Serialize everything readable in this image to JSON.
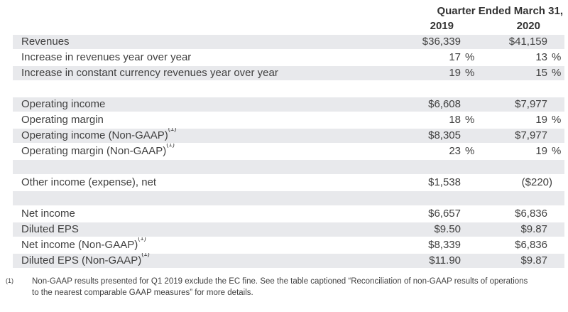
{
  "header": {
    "title": "Quarter Ended March 31,",
    "col_2019": "2019",
    "col_2020": "2020"
  },
  "table": {
    "rows": [
      {
        "label": "Revenues",
        "sup": "",
        "v1": "$36,339",
        "s1": "",
        "v2": "$41,159",
        "s2": "",
        "shaded": true,
        "blank": false
      },
      {
        "label": "Increase in revenues year over year",
        "sup": "",
        "v1": "17",
        "s1": "%",
        "v2": "13",
        "s2": "%",
        "shaded": false,
        "blank": false
      },
      {
        "label": "Increase in constant currency revenues year over year",
        "sup": "",
        "v1": "19",
        "s1": "%",
        "v2": "15",
        "s2": "%",
        "shaded": true,
        "blank": false
      },
      {
        "label": "",
        "sup": "",
        "v1": "",
        "s1": "",
        "v2": "",
        "s2": "",
        "shaded": false,
        "blank": true
      },
      {
        "label": "Operating income",
        "sup": "",
        "v1": "$6,608",
        "s1": "",
        "v2": "$7,977",
        "s2": "",
        "shaded": true,
        "blank": false
      },
      {
        "label": "Operating margin",
        "sup": "",
        "v1": "18",
        "s1": "%",
        "v2": "19",
        "s2": "%",
        "shaded": false,
        "blank": false
      },
      {
        "label": "Operating income (Non-GAAP)",
        "sup": "(1)",
        "v1": "$8,305",
        "s1": "",
        "v2": "$7,977",
        "s2": "",
        "shaded": true,
        "blank": false
      },
      {
        "label": "Operating margin (Non-GAAP)",
        "sup": "(1)",
        "v1": "23",
        "s1": "%",
        "v2": "19",
        "s2": "%",
        "shaded": false,
        "blank": false
      },
      {
        "label": "",
        "sup": "",
        "v1": "",
        "s1": "",
        "v2": "",
        "s2": "",
        "shaded": true,
        "blank": true
      },
      {
        "label": "Other income (expense), net",
        "sup": "",
        "v1": "$1,538",
        "s1": "",
        "v2": "($220)",
        "s2": "",
        "shaded": false,
        "blank": false
      },
      {
        "label": "",
        "sup": "",
        "v1": "",
        "s1": "",
        "v2": "",
        "s2": "",
        "shaded": true,
        "blank": true
      },
      {
        "label": "Net income",
        "sup": "",
        "v1": "$6,657",
        "s1": "",
        "v2": "$6,836",
        "s2": "",
        "shaded": false,
        "blank": false
      },
      {
        "label": "Diluted EPS",
        "sup": "",
        "v1": "$9.50",
        "s1": "",
        "v2": "$9.87",
        "s2": "",
        "shaded": true,
        "blank": false
      },
      {
        "label": "Net income (Non-GAAP)",
        "sup": "(1)",
        "v1": "$8,339",
        "s1": "",
        "v2": "$6,836",
        "s2": "",
        "shaded": false,
        "blank": false
      },
      {
        "label": "Diluted EPS (Non-GAAP)",
        "sup": "(1)",
        "v1": "$11.90",
        "s1": "",
        "v2": "$9.87",
        "s2": "",
        "shaded": true,
        "blank": false
      }
    ]
  },
  "footnote": {
    "marker": "(1)",
    "line1": "Non-GAAP results presented for Q1 2019 exclude the EC fine. See the table captioned “Reconciliation of non-GAAP results of operations",
    "line2": "to the nearest comparable GAAP measures” for more details."
  },
  "colors": {
    "row_shade": "#e8e9ec",
    "text": "#404040",
    "header_text": "#333333"
  }
}
